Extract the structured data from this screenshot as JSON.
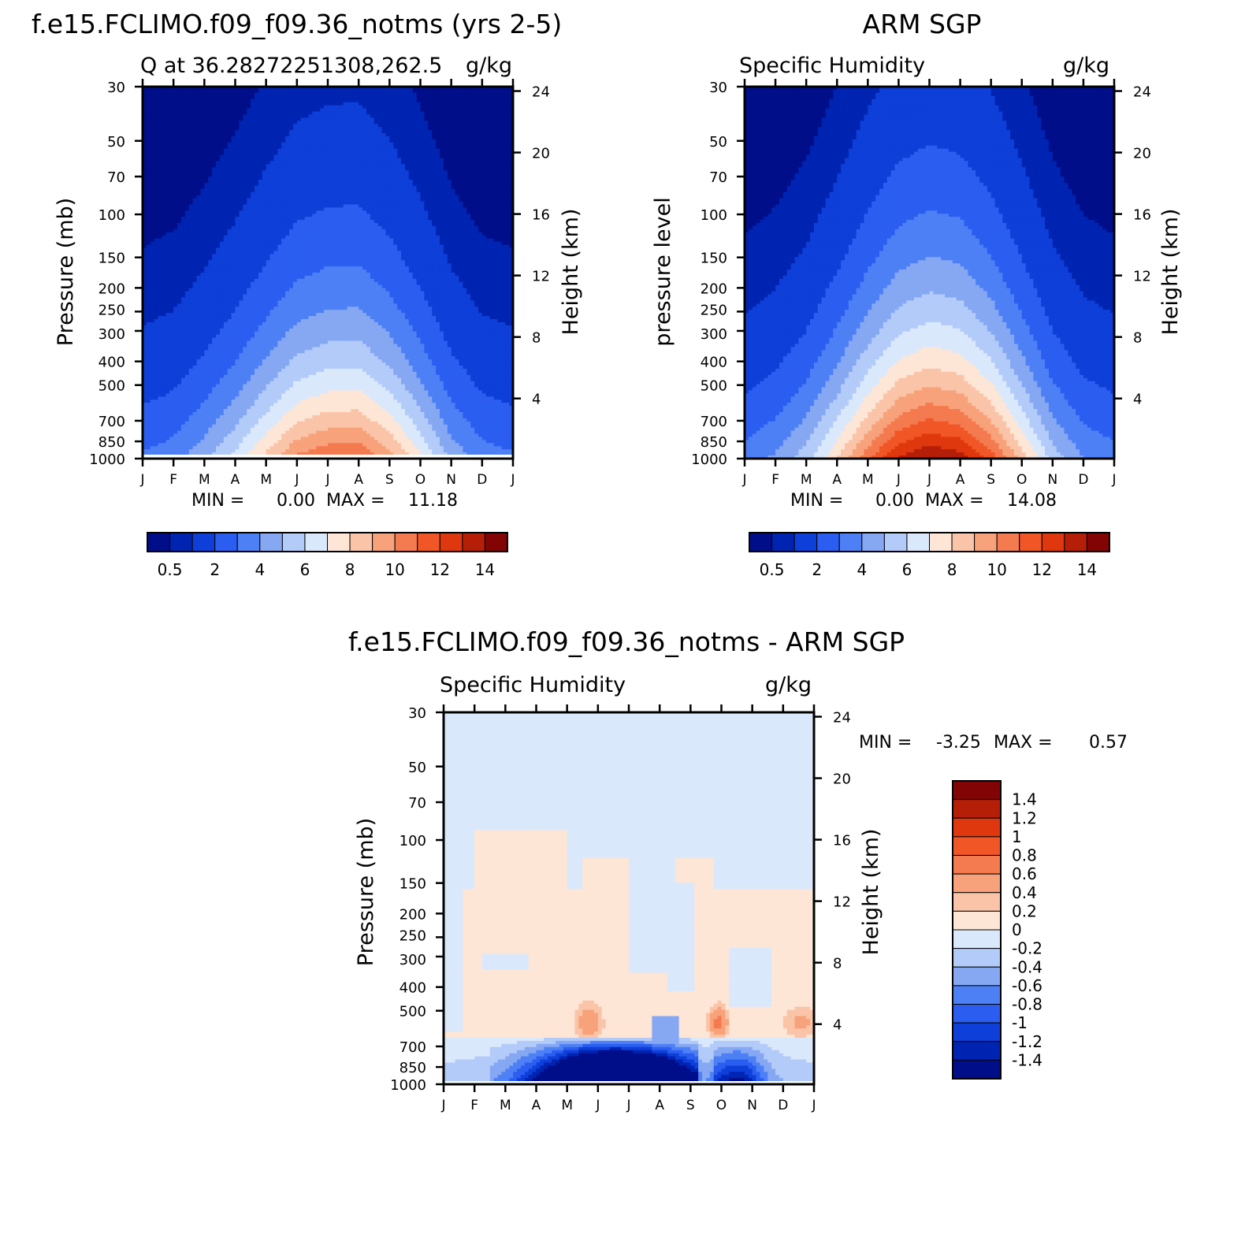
{
  "chart_data": [
    {
      "type": "heatmap",
      "title": "f.e15.FCLIMO.f09_f09.36_notms (yrs 2-5)",
      "subtitle": "Q at 36.28272251308,262.5",
      "units": "g/kg",
      "ylabel": "Pressure (mb)",
      "ylabel_right": "Height (km)",
      "months": [
        "J",
        "F",
        "M",
        "A",
        "M",
        "J",
        "J",
        "A",
        "S",
        "O",
        "N",
        "D",
        "J"
      ],
      "pressure_ticks": [
        "30",
        "50",
        "70",
        "100",
        "150",
        "200",
        "250",
        "300",
        "400",
        "500",
        "700",
        "850",
        "1000"
      ],
      "height_ticks": [
        "24",
        "20",
        "16",
        "12",
        "8",
        "4"
      ],
      "stats": {
        "min_label": "MIN =",
        "min": "0.00",
        "max_label": "MAX =",
        "max": "11.18"
      },
      "colorbar_labels": [
        "0.5",
        "2",
        "4",
        "6",
        "8",
        "10",
        "12",
        "14"
      ],
      "surface_max_by_month": [
        3.2,
        3.6,
        4.8,
        6.4,
        8.4,
        10.3,
        11.0,
        11.1,
        9.6,
        7.3,
        4.8,
        3.5,
        3.2
      ]
    },
    {
      "type": "heatmap",
      "title": "ARM SGP",
      "subtitle": "Specific Humidity",
      "units": "g/kg",
      "ylabel": "pressure level",
      "ylabel_right": "Height (km)",
      "months": [
        "J",
        "F",
        "M",
        "A",
        "M",
        "J",
        "J",
        "A",
        "S",
        "O",
        "N",
        "D",
        "J"
      ],
      "pressure_ticks": [
        "30",
        "50",
        "70",
        "100",
        "150",
        "200",
        "250",
        "300",
        "400",
        "500",
        "700",
        "850",
        "1000"
      ],
      "height_ticks": [
        "24",
        "20",
        "16",
        "12",
        "8",
        "4"
      ],
      "stats": {
        "min_label": "MIN =",
        "min": "0.00",
        "max_label": "MAX =",
        "max": "14.08"
      },
      "colorbar_labels": [
        "0.5",
        "2",
        "4",
        "6",
        "8",
        "10",
        "12",
        "14"
      ],
      "surface_max_by_month": [
        3.5,
        4.2,
        5.6,
        8.0,
        10.8,
        13.2,
        14.08,
        13.6,
        11.6,
        8.6,
        5.6,
        4.0,
        3.5
      ]
    },
    {
      "type": "heatmap",
      "title": "f.e15.FCLIMO.f09_f09.36_notms - ARM SGP",
      "subtitle": "Specific Humidity",
      "units": "g/kg",
      "ylabel": "Pressure (mb)",
      "ylabel_right": "Height (km)",
      "months": [
        "J",
        "F",
        "M",
        "A",
        "M",
        "J",
        "J",
        "A",
        "S",
        "O",
        "N",
        "D",
        "J"
      ],
      "pressure_ticks": [
        "30",
        "50",
        "70",
        "100",
        "150",
        "200",
        "250",
        "300",
        "400",
        "500",
        "700",
        "850",
        "1000"
      ],
      "height_ticks": [
        "24",
        "20",
        "16",
        "12",
        "8",
        "4"
      ],
      "stats": {
        "min_label": "MIN =",
        "min": "-3.25",
        "max_label": "MAX =",
        "max": "0.57"
      },
      "colorbar_labels": [
        "1.4",
        "1.2",
        "1",
        "0.8",
        "0.6",
        "0.4",
        "0.2",
        "0",
        "-0.2",
        "-0.4",
        "-0.6",
        "-0.8",
        "-1",
        "-1.2",
        "-1.4"
      ]
    }
  ],
  "colors": {
    "sequential": [
      "#000e8a",
      "#0024b2",
      "#0e3fd8",
      "#2b5ef0",
      "#4e80f5",
      "#86a8f3",
      "#b3cbf9",
      "#dae8fb",
      "#fde6d6",
      "#fac4a8",
      "#f8a27b",
      "#f47a4f",
      "#f05626",
      "#e0380e",
      "#b51f08",
      "#830404"
    ],
    "diverging": [
      "#830404",
      "#b51f08",
      "#e0380e",
      "#f05626",
      "#f47a4f",
      "#f8a27b",
      "#fac4a8",
      "#fde6d6",
      "#dae8fb",
      "#b3cbf9",
      "#86a8f3",
      "#4e80f5",
      "#2b5ef0",
      "#0e3fd8",
      "#0024b2",
      "#000e8a"
    ]
  }
}
